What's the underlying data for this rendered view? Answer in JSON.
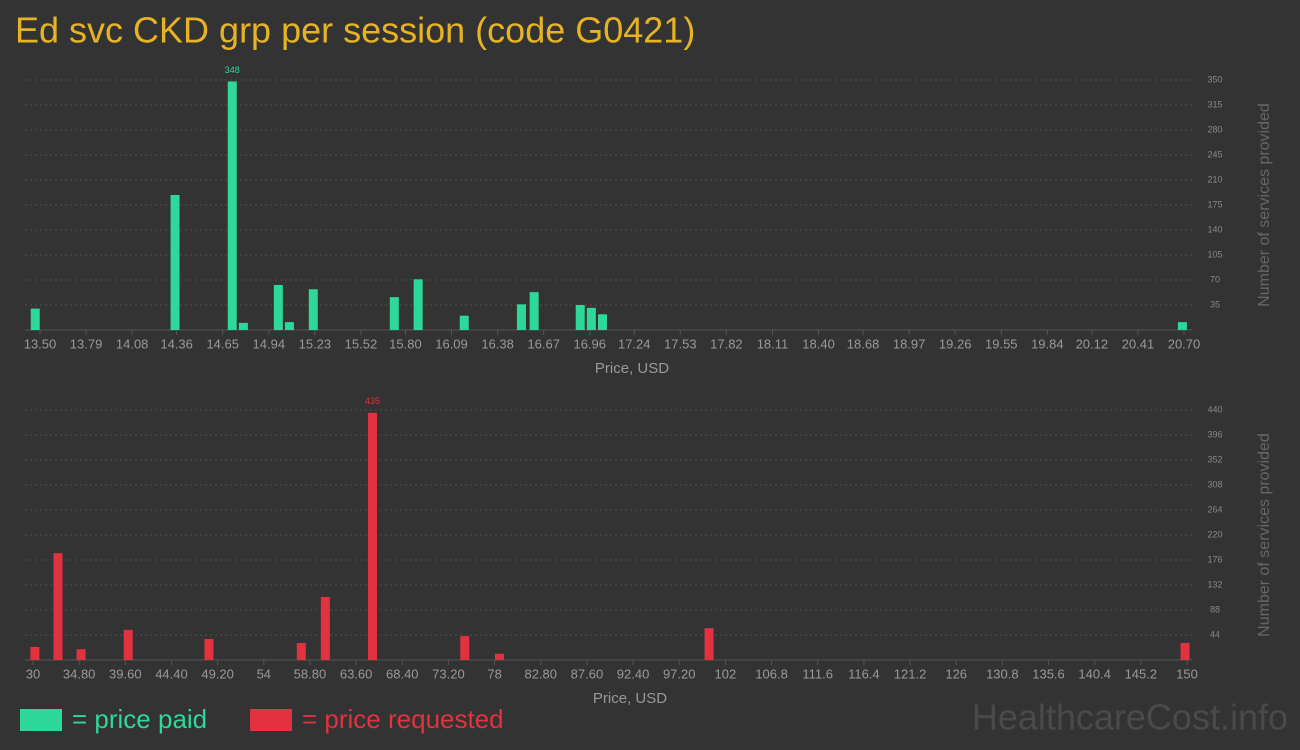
{
  "title": "Ed svc CKD grp per session (code G0421)",
  "watermark": "HealthcareCost.info",
  "chart_data": [
    {
      "type": "bar",
      "xlabel": "Price, USD",
      "ylabel": "Number of services provided",
      "grid": true,
      "series": [
        {
          "name": "= price paid",
          "color": "#2ed89a",
          "x": [
            13.47,
            14.35,
            14.71,
            14.78,
            15.0,
            15.07,
            15.22,
            15.73,
            15.88,
            16.17,
            16.53,
            16.61,
            16.9,
            16.97,
            17.04,
            20.69
          ],
          "values": [
            30,
            189,
            348,
            10,
            63,
            11,
            57,
            46,
            71,
            20,
            36,
            53,
            35,
            31,
            22,
            11
          ]
        }
      ],
      "xlim": [
        13.5,
        20.7
      ],
      "xticks": [
        {
          "value": 13.5,
          "label": "13.50"
        },
        13.79,
        14.08,
        14.36,
        14.65,
        14.94,
        15.23,
        15.52,
        {
          "value": 15.8,
          "label": "15.80"
        },
        16.09,
        16.38,
        16.67,
        16.96,
        17.24,
        17.53,
        17.82,
        18.11,
        {
          "value": 18.4,
          "label": "18.40"
        },
        18.68,
        18.97,
        19.26,
        19.55,
        19.84,
        20.12,
        20.41,
        {
          "value": 20.7,
          "label": "20.70"
        }
      ],
      "ylim": [
        0,
        350
      ],
      "yticks": [
        35,
        70,
        105,
        140,
        175,
        210,
        245,
        280,
        315,
        350
      ]
    },
    {
      "type": "bar",
      "xlabel": "Price, USD",
      "ylabel": "Number of services provided",
      "grid": true,
      "series": [
        {
          "name": "= price requested",
          "color": "#e3323f",
          "x": [
            30.2,
            32.6,
            35.0,
            39.9,
            48.3,
            57.9,
            60.4,
            65.3,
            74.9,
            78.5,
            100.3,
            149.8
          ],
          "values": [
            23,
            188,
            19,
            53,
            37,
            30,
            111,
            435,
            42,
            11,
            56,
            30
          ]
        }
      ],
      "xlim": [
        30,
        150
      ],
      "xticks": [
        30,
        {
          "value": 34.8,
          "label": "34.80"
        },
        {
          "value": 39.6,
          "label": "39.60"
        },
        {
          "value": 44.4,
          "label": "44.40"
        },
        {
          "value": 49.2,
          "label": "49.20"
        },
        54,
        {
          "value": 58.8,
          "label": "58.80"
        },
        {
          "value": 63.6,
          "label": "63.60"
        },
        {
          "value": 68.4,
          "label": "68.40"
        },
        {
          "value": 73.2,
          "label": "73.20"
        },
        78,
        {
          "value": 82.8,
          "label": "82.80"
        },
        {
          "value": 87.6,
          "label": "87.60"
        },
        {
          "value": 92.4,
          "label": "92.40"
        },
        {
          "value": 97.2,
          "label": "97.20"
        },
        102,
        106.8,
        111.6,
        116.4,
        121.2,
        126,
        130.8,
        135.6,
        140.4,
        145.2,
        150
      ],
      "ylim": [
        0,
        440
      ],
      "yticks": [
        44,
        88,
        132,
        176,
        220,
        264,
        308,
        352,
        396,
        440
      ]
    }
  ]
}
